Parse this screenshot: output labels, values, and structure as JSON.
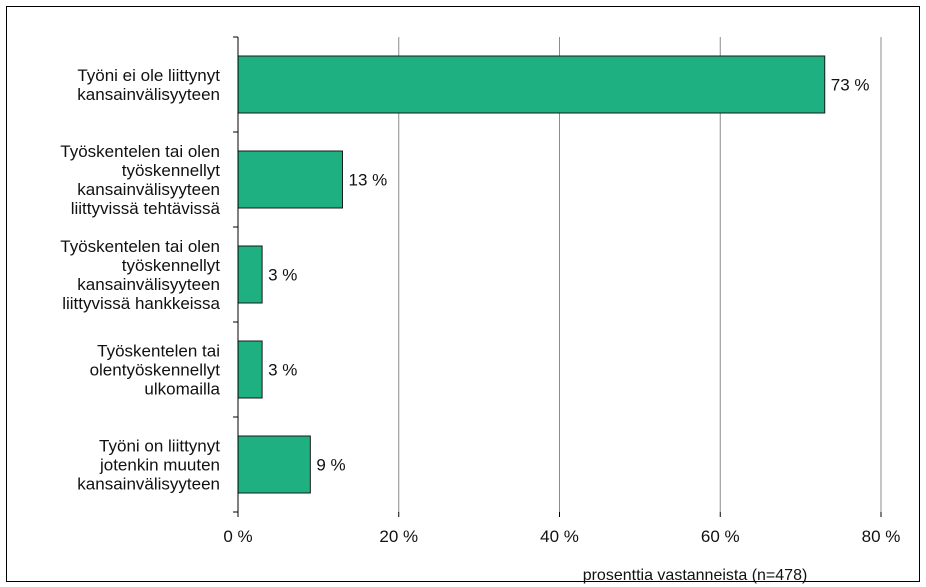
{
  "chart_data": {
    "type": "bar",
    "orientation": "horizontal",
    "categories": [
      [
        "Työni ei ole liittynyt",
        "kansainvälisyyteen"
      ],
      [
        "Työskentelen tai olen",
        "työskennellyt",
        "kansainvälisyyteen",
        "liittyvissä tehtävissä"
      ],
      [
        "Työskentelen tai olen",
        "työskennellyt",
        "kansainvälisyyteen",
        "liittyvissä hankkeissa"
      ],
      [
        "Työskentelen tai",
        "olentyöskennellyt",
        "ulkomailla"
      ],
      [
        "Työni on liittynyt",
        "jotenkin muuten",
        "kansainvälisyyteen"
      ]
    ],
    "values": [
      73,
      13,
      3,
      3,
      9
    ],
    "value_labels": [
      "73 %",
      "13 %",
      "3 %",
      "3 %",
      "9 %"
    ],
    "xticks": [
      0,
      20,
      40,
      60,
      80
    ],
    "xtick_labels": [
      "0 %",
      "20 %",
      "40 %",
      "60 %",
      "80 %"
    ],
    "xlim": [
      0,
      80
    ],
    "xlabel": "prosenttia vastanneista (n=478)",
    "grid": true,
    "colors": {
      "bar": "#1eb080",
      "bar_stroke": "#1a1a1a",
      "grid": "#8c8c8c",
      "axis": "#000000"
    }
  }
}
